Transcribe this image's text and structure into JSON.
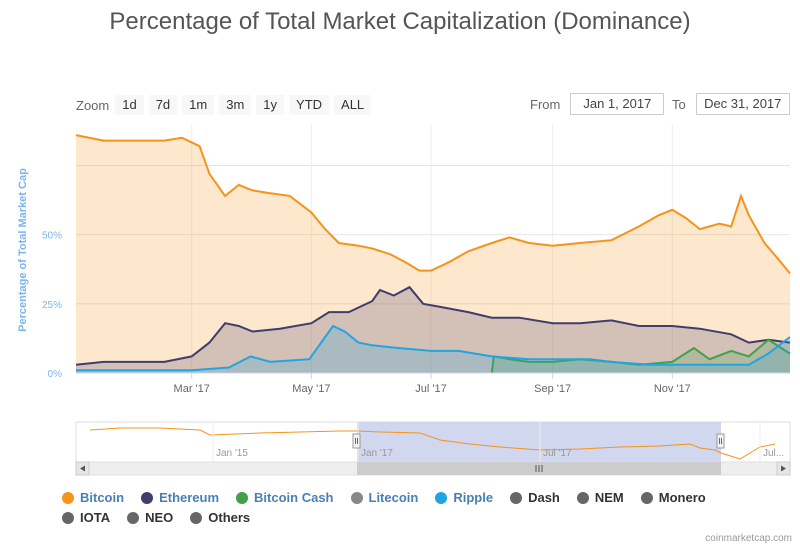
{
  "title": "Percentage of Total Market Capitalization (Dominance)",
  "zoom": {
    "label": "Zoom",
    "buttons": [
      "1d",
      "7d",
      "1m",
      "3m",
      "1y",
      "YTD",
      "ALL"
    ]
  },
  "range": {
    "from_label": "From",
    "from_value": "Jan 1, 2017",
    "to_label": "To",
    "to_value": "Dec 31, 2017"
  },
  "credit": "coinmarketcap.com",
  "colors": {
    "bitcoin": "#f7931a",
    "ethereum": "#3f3d6e",
    "bitcoin_cash": "#43a047",
    "litecoin": "#888888",
    "ripple": "#1fa5e0",
    "gray": "#666666",
    "legend_text": "#4a7fb5",
    "legend_gray_text": "#333333"
  },
  "chart_data": {
    "type": "area",
    "ylabel": "Percentage of Total Market Cap",
    "ylim": [
      0,
      90
    ],
    "y_ticks": [
      0,
      25,
      50
    ],
    "y_tick_labels": [
      "0%",
      "25%",
      "50%"
    ],
    "x_ticks": [
      "2017-03-01",
      "2017-05-01",
      "2017-07-01",
      "2017-09-01",
      "2017-11-01"
    ],
    "x_tick_labels": [
      "Mar '17",
      "May '17",
      "Jul '17",
      "Sep '17",
      "Nov '17"
    ],
    "xlim": [
      "2017-01-01",
      "2017-12-31"
    ],
    "grid": true,
    "legend_position": "bottom",
    "series": [
      {
        "name": "Bitcoin",
        "color": "#f7931a",
        "points": [
          [
            "2017-01-01",
            86
          ],
          [
            "2017-01-15",
            84
          ],
          [
            "2017-02-01",
            84
          ],
          [
            "2017-02-15",
            84
          ],
          [
            "2017-02-24",
            85
          ],
          [
            "2017-03-05",
            82
          ],
          [
            "2017-03-10",
            72
          ],
          [
            "2017-03-18",
            64
          ],
          [
            "2017-03-25",
            68
          ],
          [
            "2017-04-01",
            66
          ],
          [
            "2017-04-10",
            65
          ],
          [
            "2017-04-20",
            64
          ],
          [
            "2017-05-01",
            58
          ],
          [
            "2017-05-08",
            52
          ],
          [
            "2017-05-15",
            47
          ],
          [
            "2017-05-25",
            46
          ],
          [
            "2017-06-01",
            45
          ],
          [
            "2017-06-10",
            43
          ],
          [
            "2017-06-18",
            40
          ],
          [
            "2017-06-25",
            37
          ],
          [
            "2017-07-01",
            37
          ],
          [
            "2017-07-10",
            40
          ],
          [
            "2017-07-20",
            44
          ],
          [
            "2017-08-01",
            47
          ],
          [
            "2017-08-10",
            49
          ],
          [
            "2017-08-20",
            47
          ],
          [
            "2017-09-01",
            46
          ],
          [
            "2017-09-15",
            47
          ],
          [
            "2017-10-01",
            48
          ],
          [
            "2017-10-15",
            53
          ],
          [
            "2017-10-25",
            57
          ],
          [
            "2017-11-01",
            59
          ],
          [
            "2017-11-08",
            56
          ],
          [
            "2017-11-15",
            52
          ],
          [
            "2017-11-25",
            54
          ],
          [
            "2017-12-01",
            53
          ],
          [
            "2017-12-06",
            64
          ],
          [
            "2017-12-10",
            57
          ],
          [
            "2017-12-18",
            47
          ],
          [
            "2017-12-24",
            42
          ],
          [
            "2017-12-31",
            36
          ]
        ]
      },
      {
        "name": "Ethereum",
        "color": "#3f3d6e",
        "points": [
          [
            "2017-01-01",
            3
          ],
          [
            "2017-01-15",
            4
          ],
          [
            "2017-02-01",
            4
          ],
          [
            "2017-02-15",
            4
          ],
          [
            "2017-03-01",
            6
          ],
          [
            "2017-03-10",
            11
          ],
          [
            "2017-03-18",
            18
          ],
          [
            "2017-03-25",
            17
          ],
          [
            "2017-04-01",
            15
          ],
          [
            "2017-04-15",
            16
          ],
          [
            "2017-05-01",
            18
          ],
          [
            "2017-05-10",
            22
          ],
          [
            "2017-05-20",
            22
          ],
          [
            "2017-06-01",
            26
          ],
          [
            "2017-06-05",
            30
          ],
          [
            "2017-06-12",
            28
          ],
          [
            "2017-06-20",
            31
          ],
          [
            "2017-06-27",
            25
          ],
          [
            "2017-07-05",
            24
          ],
          [
            "2017-07-20",
            22
          ],
          [
            "2017-08-01",
            20
          ],
          [
            "2017-08-15",
            20
          ],
          [
            "2017-09-01",
            18
          ],
          [
            "2017-09-15",
            18
          ],
          [
            "2017-10-01",
            19
          ],
          [
            "2017-10-15",
            17
          ],
          [
            "2017-11-01",
            17
          ],
          [
            "2017-11-15",
            16
          ],
          [
            "2017-12-01",
            14
          ],
          [
            "2017-12-10",
            11
          ],
          [
            "2017-12-20",
            12
          ],
          [
            "2017-12-31",
            11
          ]
        ]
      },
      {
        "name": "Bitcoin Cash",
        "color": "#43a047",
        "points": [
          [
            "2017-08-01",
            0
          ],
          [
            "2017-08-02",
            6
          ],
          [
            "2017-08-10",
            5
          ],
          [
            "2017-08-20",
            4
          ],
          [
            "2017-09-01",
            4
          ],
          [
            "2017-09-15",
            5
          ],
          [
            "2017-10-01",
            4
          ],
          [
            "2017-10-15",
            3
          ],
          [
            "2017-11-01",
            4
          ],
          [
            "2017-11-12",
            9
          ],
          [
            "2017-11-20",
            5
          ],
          [
            "2017-12-01",
            8
          ],
          [
            "2017-12-10",
            6
          ],
          [
            "2017-12-20",
            12
          ],
          [
            "2017-12-31",
            7
          ]
        ]
      },
      {
        "name": "Ripple",
        "color": "#1fa5e0",
        "points": [
          [
            "2017-01-01",
            1
          ],
          [
            "2017-02-01",
            1
          ],
          [
            "2017-03-01",
            1
          ],
          [
            "2017-03-20",
            2
          ],
          [
            "2017-03-31",
            6
          ],
          [
            "2017-04-10",
            4
          ],
          [
            "2017-04-30",
            5
          ],
          [
            "2017-05-05",
            10
          ],
          [
            "2017-05-12",
            17
          ],
          [
            "2017-05-18",
            15
          ],
          [
            "2017-05-25",
            11
          ],
          [
            "2017-06-01",
            10
          ],
          [
            "2017-06-15",
            9
          ],
          [
            "2017-07-01",
            8
          ],
          [
            "2017-07-15",
            8
          ],
          [
            "2017-08-01",
            6
          ],
          [
            "2017-08-20",
            5
          ],
          [
            "2017-09-01",
            5
          ],
          [
            "2017-09-20",
            5
          ],
          [
            "2017-10-01",
            4
          ],
          [
            "2017-10-20",
            3
          ],
          [
            "2017-11-01",
            3
          ],
          [
            "2017-11-20",
            3
          ],
          [
            "2017-12-10",
            3
          ],
          [
            "2017-12-20",
            7
          ],
          [
            "2017-12-31",
            13
          ]
        ]
      }
    ]
  },
  "navigator": {
    "tick_labels": [
      "Jan '15",
      "Jan '17",
      "Jul '17",
      "Jul..."
    ]
  },
  "legend": [
    {
      "label": "Bitcoin",
      "color": "#f7931a",
      "highlight": true
    },
    {
      "label": "Ethereum",
      "color": "#3f3d6e",
      "highlight": true
    },
    {
      "label": "Bitcoin Cash",
      "color": "#43a047",
      "highlight": true
    },
    {
      "label": "Litecoin",
      "color": "#888888",
      "highlight": true
    },
    {
      "label": "Ripple",
      "color": "#1fa5e0",
      "highlight": true
    },
    {
      "label": "Dash",
      "color": "#666666",
      "highlight": false
    },
    {
      "label": "NEM",
      "color": "#666666",
      "highlight": false
    },
    {
      "label": "Monero",
      "color": "#666666",
      "highlight": false
    },
    {
      "label": "IOTA",
      "color": "#666666",
      "highlight": false
    },
    {
      "label": "NEO",
      "color": "#666666",
      "highlight": false
    },
    {
      "label": "Others",
      "color": "#666666",
      "highlight": false
    }
  ]
}
